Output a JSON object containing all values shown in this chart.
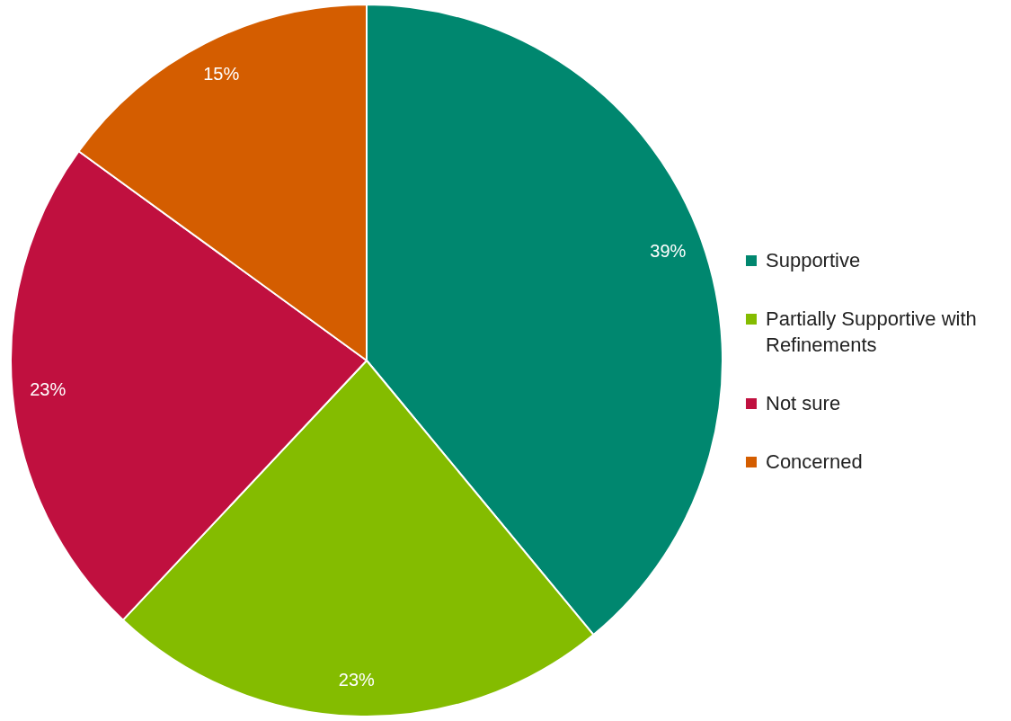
{
  "chart_data": {
    "type": "pie",
    "categories": [
      "Supportive",
      "Partially Supportive with Refinements",
      "Not sure",
      "Concerned"
    ],
    "values": [
      39,
      23,
      23,
      15
    ],
    "colors": [
      "#00876f",
      "#84bc00",
      "#c0103f",
      "#d45d00"
    ],
    "value_labels": [
      "39%",
      "23%",
      "23%",
      "15%"
    ],
    "legend": "right"
  }
}
